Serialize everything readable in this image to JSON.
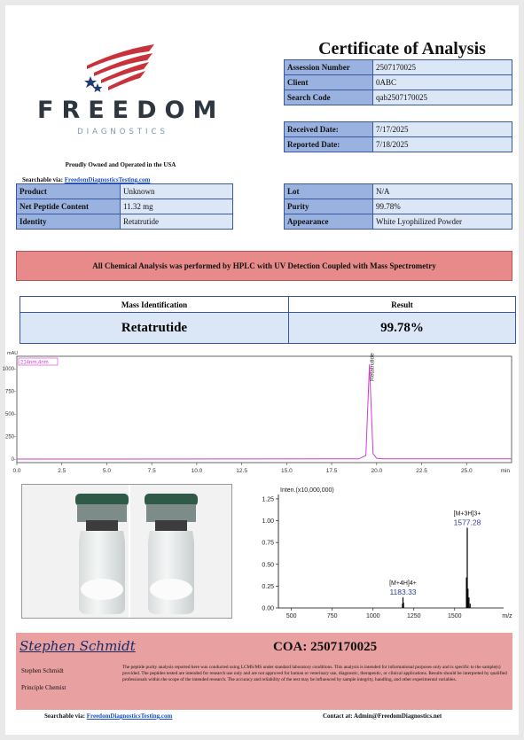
{
  "logo": {
    "brand": "FREEDOM",
    "sub": "DIAGNOSTICS",
    "owned": "Proudly Owned and Operated in the USA",
    "colors": {
      "stripes": "#c8323a",
      "stars": "#1f3b73"
    }
  },
  "title": "Certificate of Analysis",
  "searchable": {
    "label": "Searchable via:",
    "link": "FreedomDiagnosticsTesting.com"
  },
  "header_fields": [
    {
      "label": "Assession Number",
      "value": "2507170025"
    },
    {
      "label": "Client",
      "value": "0ABC"
    },
    {
      "label": "Search Code",
      "value": "qab2507170025"
    }
  ],
  "dates": [
    {
      "label": "Received Date:",
      "value": "7/17/2025"
    },
    {
      "label": "Reported Date:",
      "value": "7/18/2025"
    }
  ],
  "product_left": [
    {
      "label": "Product",
      "value": "Unknown"
    },
    {
      "label": "Net Peptide Content",
      "value": "11.32 mg"
    },
    {
      "label": "Identity",
      "value": "Retatrutide"
    }
  ],
  "product_right": [
    {
      "label": "Lot",
      "value": "N/A"
    },
    {
      "label": "Purity",
      "value": "99.78%"
    },
    {
      "label": "Appearance",
      "value": "White Lyophilized Powder"
    }
  ],
  "banner": "All Chemical Analysis was performed by HPLC with UV Detection Coupled with Mass Spectrometry",
  "mass_table": {
    "headers": [
      "Mass Identification",
      "Result"
    ],
    "row": [
      "Retatrutide",
      "99.78%"
    ]
  },
  "chart_data": [
    {
      "type": "line",
      "ylabel": "mAU",
      "legend": "214nm,4nm",
      "xunit": "min",
      "x_ticks": [
        "0.0",
        "2.5",
        "5.0",
        "7.5",
        "10.0",
        "12.5",
        "15.0",
        "17.5",
        "20.0",
        "22.5",
        "25.0"
      ],
      "y_ticks": [
        "1000-",
        "750-",
        "500-",
        "250-",
        "0-"
      ],
      "xlim": [
        0,
        27.5
      ],
      "ylim": [
        0,
        1100
      ],
      "peak_label": "Retatrutide",
      "series": [
        {
          "x": [
            0,
            19.0,
            19.4,
            19.6,
            19.8,
            20.0,
            20.4,
            27.5
          ],
          "y": [
            0,
            2,
            40,
            1050,
            60,
            8,
            3,
            2
          ]
        }
      ],
      "color": "#d13ad1"
    },
    {
      "type": "bar",
      "ylabel": "Inten.(x10,000,000)",
      "xunit": "m/z",
      "x_ticks": [
        "500",
        "750",
        "1000",
        "1250",
        "1500"
      ],
      "y_ticks": [
        "1.25",
        "1.00",
        "0.75",
        "0.50",
        "0.25",
        "0.00"
      ],
      "xlim": [
        420,
        1800
      ],
      "ylim": [
        0,
        1.3
      ],
      "peaks": [
        {
          "mz": 1183.33,
          "intensity": 0.12,
          "ion": "[M+4H]4+",
          "label": "1183.33"
        },
        {
          "mz": 1577.28,
          "intensity": 0.92,
          "ion": "[M+3H]3+",
          "label": "1577.28"
        }
      ],
      "minor_peaks": [
        {
          "mz": 1180,
          "intensity": 0.05
        },
        {
          "mz": 1187,
          "intensity": 0.06
        },
        {
          "mz": 1572,
          "intensity": 0.35
        },
        {
          "mz": 1582,
          "intensity": 0.22
        },
        {
          "mz": 1588,
          "intensity": 0.12
        },
        {
          "mz": 1595,
          "intensity": 0.05
        }
      ]
    }
  ],
  "signature": {
    "script": "Stephen Schmidt",
    "name": "Stephen Schmidt",
    "role": "Principle Chemist"
  },
  "coa": "COA: 2507170025",
  "disclaimer": "The peptide purity analysis reported here was conducted using LCMS/MS under standard laboratory conditions. This analysis is intended for informational purposes only and is specific to the sample(s) provided. The peptides tested are intended for research use only and are not approved for human or veterinary use, diagnostic, therapeutic, or clinical applications. Results should be interpreted by qualified professionals within the scope of the intended research. The accuracy and reliability of the test may be influenced by sample integrity, handling, and other experimental variables.",
  "footer": {
    "searchable_label": "Searchable via:",
    "searchable_link": "FreedomDiagnosticsTesting.com",
    "contact_label": "Contact at:",
    "contact_email": "Admin@FreedomDiagnostics.net"
  }
}
